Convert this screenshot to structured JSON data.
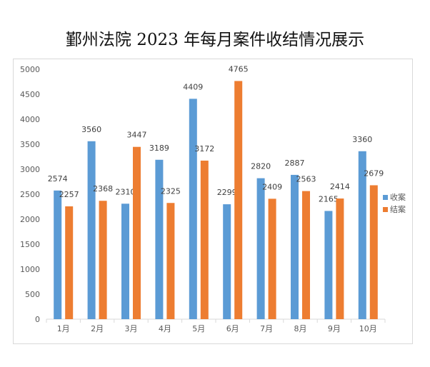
{
  "chart_data": {
    "type": "bar",
    "title": "鄞州法院 2023 年每月案件收结情况展示",
    "xlabel": "",
    "ylabel": "",
    "categories": [
      "1月",
      "2月",
      "3月",
      "4月",
      "5月",
      "6月",
      "7月",
      "8月",
      "9月",
      "10月"
    ],
    "series": [
      {
        "name": "收案",
        "color": "#5b9bd5",
        "values": [
          2574,
          3560,
          2310,
          3189,
          4409,
          2299,
          2820,
          2887,
          2165,
          3360
        ]
      },
      {
        "name": "结案",
        "color": "#ed7d31",
        "values": [
          2257,
          2368,
          3447,
          2325,
          3172,
          4765,
          2409,
          2563,
          2414,
          2679
        ]
      }
    ],
    "ylim": [
      0,
      5000
    ],
    "yticks": [
      0,
      500,
      1000,
      1500,
      2000,
      2500,
      3000,
      3500,
      4000,
      4500,
      5000
    ],
    "grid": false,
    "legend_position": "right",
    "data_labels": true
  }
}
